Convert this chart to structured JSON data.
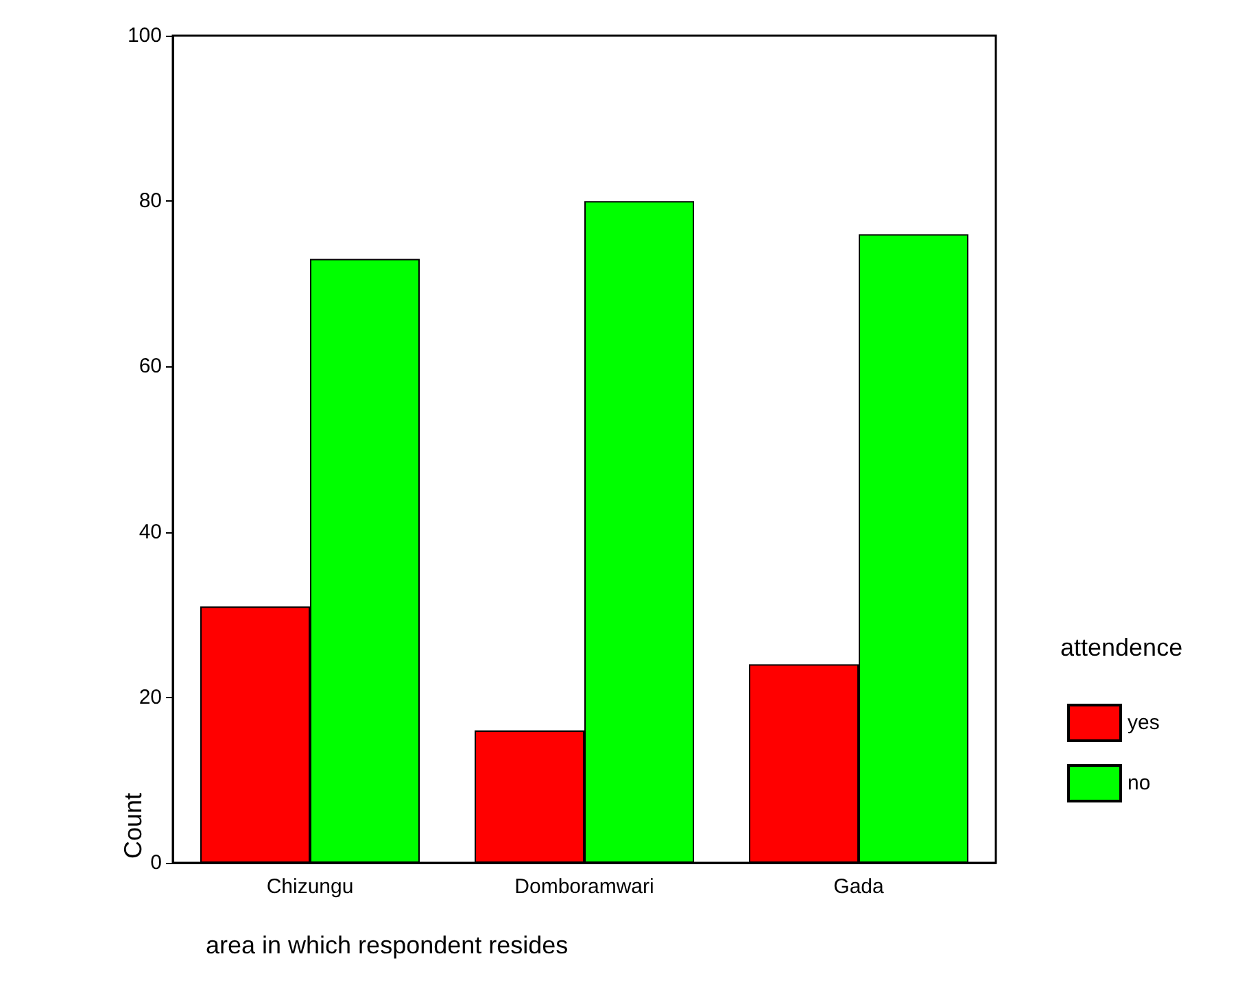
{
  "chart_data": {
    "type": "bar",
    "xlabel": "area in which respondent resides",
    "ylabel": "Count",
    "legend_title": "attendence",
    "categories": [
      "Chizungu",
      "Domboramwari",
      "Gada"
    ],
    "series": [
      {
        "name": "yes",
        "color": "#ff0000",
        "values": [
          31,
          16,
          24
        ]
      },
      {
        "name": "no",
        "color": "#00ff00",
        "values": [
          73,
          80,
          76
        ]
      }
    ],
    "ylim": [
      0,
      100
    ],
    "yticks": [
      0,
      20,
      40,
      60,
      80,
      100
    ],
    "grid": false,
    "legend": "right"
  }
}
